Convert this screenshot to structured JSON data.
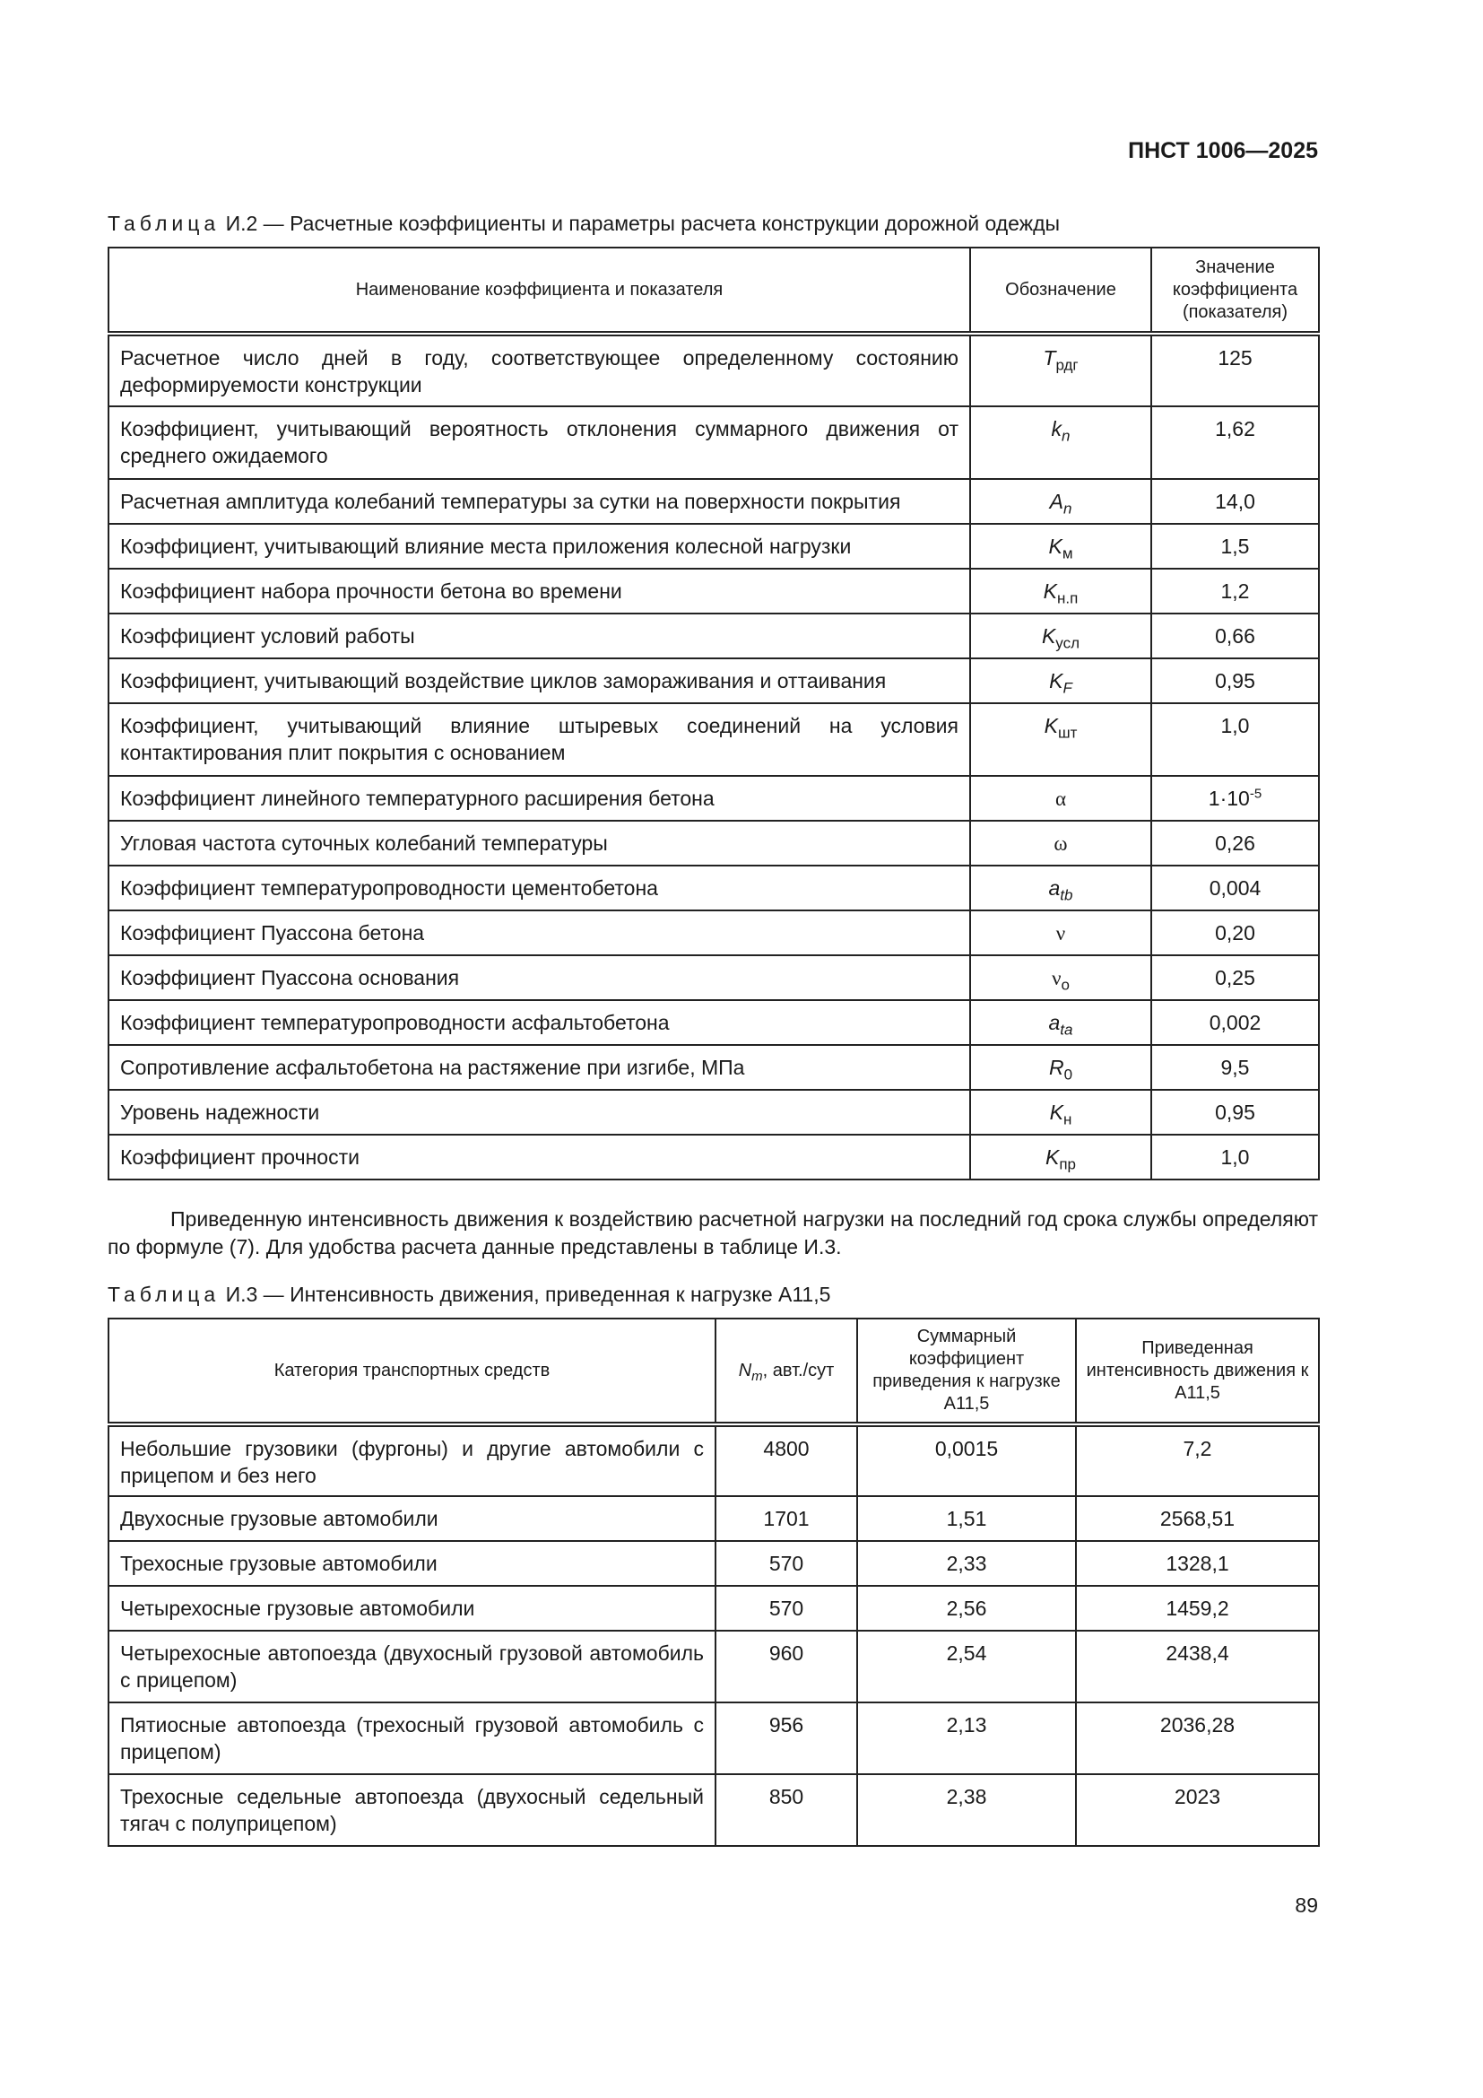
{
  "header": {
    "doc_code": "ПНСТ 1006—2025"
  },
  "table_i2": {
    "caption_word": "Таблица",
    "caption_text": "И.2 — Расчетные коэффициенты и параметры расчета конструкции дорожной одежды",
    "columns": [
      "Наименование коэффициента и показателя",
      "Обозначение",
      "Значение коэффициента (показателя)"
    ],
    "rows": [
      {
        "name": "Расчетное число дней в году, соответствующее определенному состоянию деформируемости конструкции",
        "sym": "T",
        "sub": "рдг",
        "value": "125"
      },
      {
        "name": "Коэффициент, учитывающий вероятность отклонения суммарного движения от среднего ожидаемого",
        "sym": "k",
        "sub": "n",
        "value": "1,62"
      },
      {
        "name": "Расчетная амплитуда колебаний температуры за сутки на поверхности покрытия",
        "sym": "A",
        "sub": "n",
        "value": "14,0"
      },
      {
        "name": "Коэффициент, учитывающий влияние места приложения колесной нагрузки",
        "sym": "K",
        "sub": "м",
        "value": "1,5"
      },
      {
        "name": "Коэффициент набора прочности бетона во времени",
        "sym": "K",
        "sub": "н.п",
        "value": "1,2"
      },
      {
        "name": "Коэффициент условий работы",
        "sym": "K",
        "sub": "усл",
        "value": "0,66"
      },
      {
        "name": "Коэффициент, учитывающий воздействие циклов замораживания и оттаивания",
        "sym": "K",
        "sub": "F",
        "value": "0,95"
      },
      {
        "name": "Коэффициент, учитывающий влияние штыревых соединений на условия контактирования плит покрытия с основанием",
        "sym": "K",
        "sub": "шт",
        "value": "1,0"
      },
      {
        "name": "Коэффициент линейного температурного расширения бетона",
        "sym": "α",
        "sub": "",
        "value": "1·10",
        "value_sup": "-5"
      },
      {
        "name": "Угловая частота суточных колебаний температуры",
        "sym": "ω",
        "sub": "",
        "value": "0,26"
      },
      {
        "name": "Коэффициент температуропроводности цементобетона",
        "sym": "a",
        "sub": "tb",
        "value": "0,004"
      },
      {
        "name": "Коэффициент Пуассона бетона",
        "sym": "ν",
        "sub": "",
        "value": "0,20"
      },
      {
        "name": "Коэффициент Пуассона основания",
        "sym": "ν",
        "sub": "о",
        "value": "0,25"
      },
      {
        "name": "Коэффициент температуропроводности асфальтобетона",
        "sym": "a",
        "sub": "ta",
        "value": "0,002"
      },
      {
        "name": "Сопротивление асфальтобетона на растяжение при изгибе, МПа",
        "sym": "R",
        "sub": "0",
        "value": "9,5"
      },
      {
        "name": "Уровень надежности",
        "sym": "K",
        "sub": "н",
        "value": "0,95"
      },
      {
        "name": "Коэффициент прочности",
        "sym": "K",
        "sub": "пр",
        "value": "1,0"
      }
    ]
  },
  "paragraph": "Приведенную интенсивность движения к воздействию расчетной нагрузки на последний год срока службы определяют по формуле (7). Для удобства расчета данные представлены в таблице И.3.",
  "table_i3": {
    "caption_word": "Таблица",
    "caption_text": "И.3 — Интенсивность движения, приведенная к нагрузке А11,5",
    "columns": [
      "Категория транспортных средств",
      "N",
      "Суммарный коэффициент приведения к нагрузке А11,5",
      "Приведенная интенсивность движения к А11,5"
    ],
    "col2_sub": "m",
    "col2_unit": ", авт./сут",
    "rows": [
      {
        "category": "Небольшие грузовики (фургоны) и другие автомобили с прицепом и без него",
        "n": "4800",
        "coef": "0,0015",
        "intensity": "7,2"
      },
      {
        "category": "Двухосные грузовые автомобили",
        "n": "1701",
        "coef": "1,51",
        "intensity": "2568,51"
      },
      {
        "category": "Трехосные грузовые автомобили",
        "n": "570",
        "coef": "2,33",
        "intensity": "1328,1"
      },
      {
        "category": "Четырехосные грузовые автомобили",
        "n": "570",
        "coef": "2,56",
        "intensity": "1459,2"
      },
      {
        "category": "Четырехосные автопоезда (двухосный грузовой автомобиль с прицепом)",
        "n": "960",
        "coef": "2,54",
        "intensity": "2438,4"
      },
      {
        "category": "Пятиосные автопоезда (трехосный грузовой автомобиль с прицепом)",
        "n": "956",
        "coef": "2,13",
        "intensity": "2036,28"
      },
      {
        "category": "Трехосные седельные автопоезда (двухосный седельный тягач с полуприцепом)",
        "n": "850",
        "coef": "2,38",
        "intensity": "2023"
      }
    ]
  },
  "footer": {
    "page_number": "89"
  }
}
